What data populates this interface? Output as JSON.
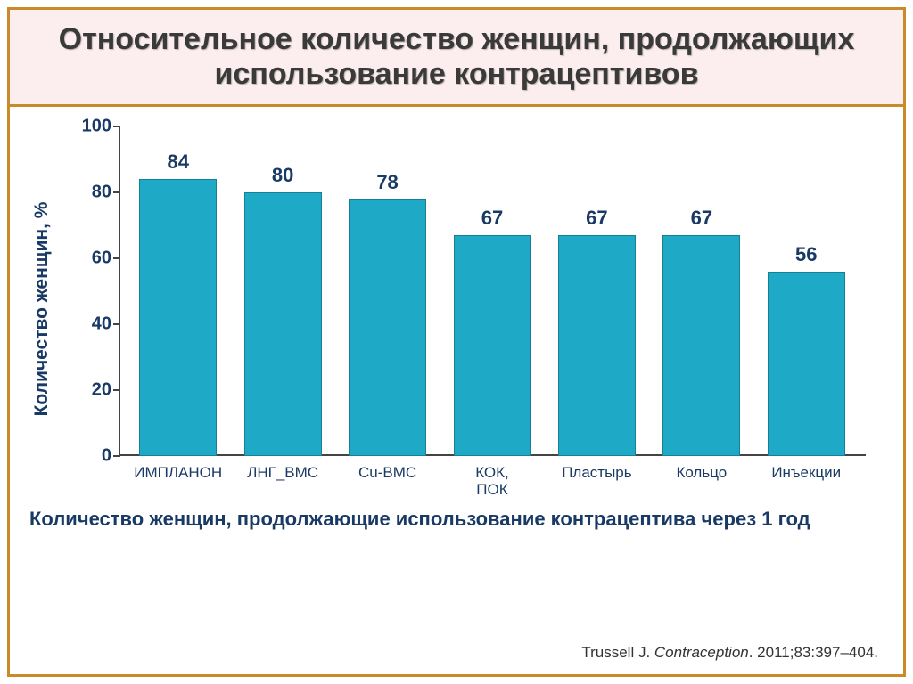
{
  "frame": {
    "border_color": "#c98a2a"
  },
  "title": {
    "text": "Относительное количество женщин, продолжающих использование контрацептивов",
    "fontsize": 34,
    "color": "#3a3a3a",
    "band_bg": "#fceeee",
    "band_border": "#c98a2a"
  },
  "chart": {
    "type": "bar",
    "ylabel": "Количество женщин, %",
    "ylabel_fontsize": 21,
    "ylabel_color": "#1a3a66",
    "ylim": [
      0,
      100
    ],
    "ytick_step": 20,
    "ytick_fontsize": 20,
    "ytick_color": "#1a3a66",
    "categories": [
      "ИМПЛАНОН",
      "ЛНГ_ВМС",
      "Cu-ВМС",
      "КОК,\nПОК",
      "Пластырь",
      "Кольцо",
      "Инъекции"
    ],
    "values": [
      84,
      80,
      78,
      67,
      67,
      67,
      56
    ],
    "bar_color": "#1eaac6",
    "value_label_fontsize": 22,
    "value_label_color": "#1a3a66",
    "xlabel_fontsize": 17,
    "xlabel_color": "#1a3a66",
    "axis_color": "#444444",
    "background_color": "#ffffff"
  },
  "caption": {
    "text": "Количество женщин, продолжающие использование контрацептива через 1 год",
    "fontsize": 22,
    "color": "#1a3a66"
  },
  "citation": {
    "prefix": "Trussell J. ",
    "italic": "Contraception",
    "suffix": ". 2011;83:397–404.",
    "fontsize": 17,
    "color": "#333333"
  }
}
